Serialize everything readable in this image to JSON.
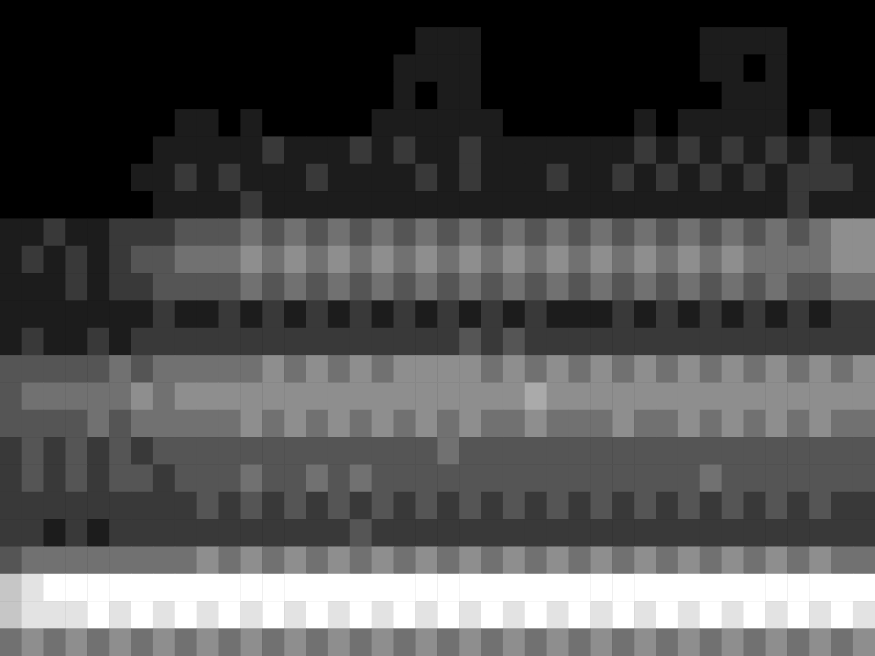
{
  "chart_data": {
    "type": "heatmap",
    "tick_labels": false,
    "zlim": [
      0,
      9
    ],
    "values": [
      [
        0,
        0,
        0,
        0,
        0,
        0,
        0,
        0,
        0,
        0,
        0,
        0,
        0,
        0,
        0,
        0,
        0,
        0,
        0,
        0,
        0,
        0,
        0,
        0,
        0,
        0,
        0,
        0,
        0,
        0,
        0,
        0,
        0,
        0,
        0,
        0,
        0,
        0,
        0,
        0
      ],
      [
        0,
        0,
        0,
        0,
        0,
        0,
        0,
        0,
        0,
        0,
        0,
        0,
        0,
        0,
        0,
        0,
        0,
        0,
        0,
        1,
        1,
        1,
        0,
        0,
        0,
        0,
        0,
        0,
        0,
        0,
        0,
        0,
        1,
        1,
        1,
        1,
        0,
        0,
        0,
        0
      ],
      [
        0,
        0,
        0,
        0,
        0,
        0,
        0,
        0,
        0,
        0,
        0,
        0,
        0,
        0,
        0,
        0,
        0,
        0,
        1,
        1,
        1,
        1,
        0,
        0,
        0,
        0,
        0,
        0,
        0,
        0,
        0,
        0,
        1,
        1,
        0,
        1,
        0,
        0,
        0,
        0
      ],
      [
        0,
        0,
        0,
        0,
        0,
        0,
        0,
        0,
        0,
        0,
        0,
        0,
        0,
        0,
        0,
        0,
        0,
        0,
        1,
        0,
        1,
        1,
        0,
        0,
        0,
        0,
        0,
        0,
        0,
        0,
        0,
        0,
        0,
        1,
        1,
        1,
        0,
        0,
        0,
        0
      ],
      [
        0,
        0,
        0,
        0,
        0,
        0,
        0,
        0,
        1,
        1,
        0,
        1,
        0,
        0,
        0,
        0,
        0,
        1,
        1,
        1,
        1,
        1,
        1,
        0,
        0,
        0,
        0,
        0,
        0,
        1,
        0,
        1,
        1,
        1,
        1,
        1,
        0,
        1,
        0,
        0
      ],
      [
        0,
        0,
        0,
        0,
        0,
        0,
        0,
        1,
        1,
        1,
        1,
        1,
        2,
        1,
        1,
        1,
        2,
        1,
        2,
        1,
        1,
        2,
        1,
        1,
        1,
        1,
        1,
        1,
        1,
        2,
        1,
        2,
        1,
        2,
        1,
        2,
        1,
        2,
        1,
        1
      ],
      [
        0,
        0,
        0,
        0,
        0,
        0,
        1,
        1,
        2,
        1,
        2,
        1,
        1,
        1,
        2,
        1,
        1,
        1,
        1,
        2,
        1,
        2,
        1,
        1,
        1,
        2,
        1,
        1,
        2,
        1,
        2,
        1,
        2,
        1,
        2,
        1,
        2,
        2,
        2,
        1
      ],
      [
        0,
        0,
        0,
        0,
        0,
        0,
        0,
        1,
        1,
        1,
        1,
        2,
        1,
        1,
        1,
        1,
        1,
        1,
        1,
        1,
        1,
        1,
        1,
        1,
        1,
        1,
        1,
        1,
        1,
        1,
        1,
        1,
        1,
        1,
        1,
        1,
        2,
        1,
        1,
        1
      ],
      [
        1,
        1,
        2,
        1,
        1,
        2,
        2,
        2,
        3,
        3,
        3,
        4,
        3,
        4,
        3,
        4,
        3,
        4,
        3,
        4,
        3,
        4,
        3,
        4,
        3,
        4,
        3,
        4,
        3,
        4,
        3,
        4,
        3,
        4,
        3,
        4,
        3,
        4,
        5,
        5
      ],
      [
        1,
        2,
        1,
        2,
        1,
        2,
        3,
        3,
        4,
        4,
        4,
        5,
        4,
        5,
        4,
        5,
        4,
        5,
        4,
        5,
        4,
        5,
        4,
        5,
        4,
        5,
        4,
        5,
        4,
        5,
        4,
        5,
        4,
        5,
        4,
        4,
        4,
        4,
        5,
        5
      ],
      [
        1,
        1,
        1,
        2,
        1,
        2,
        2,
        3,
        3,
        3,
        3,
        4,
        3,
        4,
        3,
        4,
        3,
        4,
        3,
        4,
        3,
        4,
        3,
        4,
        3,
        4,
        3,
        4,
        3,
        4,
        3,
        4,
        3,
        4,
        3,
        4,
        3,
        3,
        4,
        4
      ],
      [
        1,
        1,
        1,
        1,
        1,
        1,
        1,
        2,
        1,
        1,
        2,
        1,
        2,
        1,
        2,
        1,
        2,
        1,
        2,
        1,
        2,
        1,
        2,
        1,
        2,
        1,
        1,
        1,
        2,
        1,
        2,
        1,
        2,
        1,
        2,
        1,
        2,
        1,
        2,
        2
      ],
      [
        1,
        2,
        1,
        1,
        2,
        1,
        2,
        2,
        2,
        2,
        2,
        2,
        2,
        2,
        2,
        2,
        2,
        2,
        2,
        2,
        2,
        3,
        2,
        3,
        2,
        2,
        2,
        2,
        2,
        2,
        2,
        2,
        2,
        2,
        2,
        2,
        2,
        2,
        2,
        2
      ],
      [
        3,
        3,
        3,
        3,
        3,
        4,
        3,
        4,
        4,
        4,
        4,
        4,
        5,
        4,
        5,
        4,
        5,
        4,
        5,
        5,
        5,
        5,
        4,
        5,
        4,
        5,
        4,
        5,
        4,
        5,
        4,
        5,
        4,
        5,
        4,
        5,
        4,
        5,
        4,
        5
      ],
      [
        3,
        4,
        4,
        4,
        4,
        4,
        5,
        4,
        5,
        5,
        5,
        5,
        5,
        5,
        5,
        5,
        5,
        5,
        5,
        5,
        5,
        5,
        5,
        5,
        6,
        5,
        5,
        5,
        5,
        5,
        5,
        5,
        5,
        5,
        5,
        5,
        5,
        5,
        5,
        5
      ],
      [
        3,
        3,
        3,
        3,
        4,
        3,
        4,
        4,
        4,
        4,
        4,
        5,
        4,
        5,
        4,
        5,
        4,
        5,
        4,
        5,
        4,
        5,
        4,
        4,
        5,
        4,
        4,
        4,
        5,
        4,
        4,
        5,
        4,
        5,
        4,
        5,
        4,
        5,
        4,
        4
      ],
      [
        2,
        3,
        2,
        3,
        2,
        3,
        2,
        3,
        3,
        3,
        3,
        3,
        3,
        3,
        3,
        3,
        3,
        3,
        3,
        3,
        4,
        3,
        3,
        3,
        3,
        3,
        3,
        3,
        3,
        3,
        3,
        3,
        3,
        3,
        3,
        3,
        3,
        3,
        3,
        3
      ],
      [
        2,
        3,
        2,
        3,
        2,
        3,
        3,
        2,
        3,
        3,
        3,
        4,
        3,
        3,
        4,
        3,
        4,
        3,
        3,
        3,
        3,
        3,
        3,
        3,
        3,
        3,
        3,
        3,
        3,
        3,
        3,
        3,
        4,
        3,
        3,
        3,
        3,
        3,
        3,
        3
      ],
      [
        2,
        2,
        2,
        2,
        2,
        2,
        2,
        2,
        2,
        3,
        2,
        3,
        2,
        3,
        2,
        3,
        2,
        3,
        2,
        3,
        2,
        3,
        2,
        3,
        2,
        3,
        2,
        3,
        2,
        3,
        2,
        3,
        2,
        3,
        2,
        3,
        2,
        3,
        2,
        2
      ],
      [
        2,
        2,
        1,
        2,
        1,
        2,
        2,
        2,
        2,
        2,
        2,
        2,
        2,
        2,
        2,
        2,
        3,
        2,
        2,
        2,
        2,
        2,
        2,
        2,
        2,
        2,
        2,
        2,
        2,
        2,
        2,
        2,
        2,
        2,
        2,
        2,
        2,
        2,
        2,
        2
      ],
      [
        3,
        4,
        4,
        4,
        4,
        4,
        4,
        4,
        4,
        5,
        4,
        5,
        4,
        5,
        4,
        5,
        4,
        5,
        4,
        5,
        4,
        5,
        4,
        5,
        4,
        5,
        4,
        5,
        4,
        5,
        4,
        5,
        4,
        5,
        4,
        5,
        4,
        5,
        4,
        4
      ],
      [
        7,
        8,
        9,
        9,
        9,
        9,
        9,
        9,
        9,
        9,
        9,
        9,
        9,
        9,
        9,
        9,
        9,
        9,
        9,
        9,
        9,
        9,
        9,
        9,
        9,
        9,
        9,
        9,
        9,
        9,
        9,
        9,
        9,
        9,
        9,
        9,
        9,
        9,
        9,
        9
      ],
      [
        7,
        8,
        8,
        8,
        9,
        8,
        9,
        8,
        9,
        8,
        9,
        8,
        9,
        8,
        9,
        8,
        9,
        8,
        9,
        8,
        9,
        8,
        9,
        8,
        9,
        8,
        9,
        8,
        9,
        8,
        9,
        8,
        9,
        8,
        9,
        8,
        9,
        8,
        9,
        8
      ],
      [
        4,
        5,
        4,
        5,
        4,
        5,
        4,
        5,
        4,
        5,
        4,
        5,
        4,
        5,
        4,
        5,
        4,
        5,
        4,
        5,
        4,
        5,
        4,
        5,
        4,
        5,
        4,
        5,
        4,
        5,
        4,
        5,
        4,
        5,
        4,
        5,
        4,
        5,
        4,
        5
      ]
    ]
  }
}
